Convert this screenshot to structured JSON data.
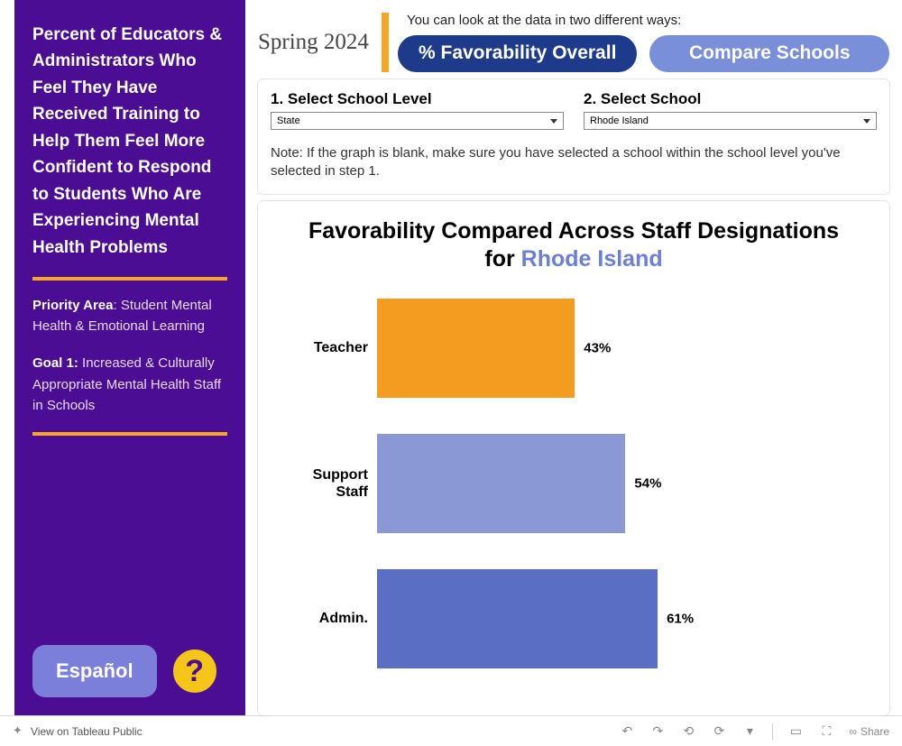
{
  "sidebar": {
    "title": "Percent of Educators & Administrators Who Feel They Have Received Training to Help Them Feel More Confident to Respond to Students Who Are Experiencing Mental Health Problems",
    "priority_label": "Priority Area",
    "priority_text": ": Student Mental Health & Emotional Learning",
    "goal_label": "Goal 1:",
    "goal_text": " Increased & Culturally Appropriate Mental Health Staff in Schools",
    "lang_button": "Español"
  },
  "header": {
    "season": "Spring 2024",
    "instruction": "You can look at the data in  two different ways:",
    "tab_active": "% Favorability Overall",
    "tab_inactive": "Compare Schools"
  },
  "controls": {
    "step1_label": "1. Select School Level",
    "step1_value": "State",
    "step2_label": "2. Select School",
    "step2_value": "Rhode Island",
    "note": "Note: If the graph is blank, make sure you have selected a school within the school level you've selected in step 1."
  },
  "chart": {
    "title_line1": "Favorability Compared Across Staff Designations",
    "title_prefix": "for ",
    "title_highlight": "Rhode Island",
    "type": "bar",
    "max_pct": 100,
    "bar_scale": 5.1,
    "bars": [
      {
        "label": "Teacher",
        "value": 43,
        "pct_text": "43%",
        "color": "#f39c1f"
      },
      {
        "label": "Support Staff",
        "value": 54,
        "pct_text": "54%",
        "color": "#8a99d6"
      },
      {
        "label": "Admin.",
        "value": 61,
        "pct_text": "61%",
        "color": "#5a6fc4"
      }
    ],
    "background_color": "#ffffff",
    "label_fontsize": 16,
    "value_fontsize": 15,
    "title_fontsize": 25
  },
  "footer": {
    "view_text": "View on Tableau Public",
    "share": "Share"
  }
}
